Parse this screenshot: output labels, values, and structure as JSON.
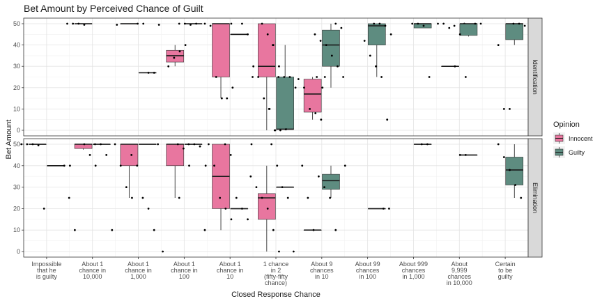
{
  "chart_data": {
    "type": "boxplot",
    "title": "Bet Amount by Perceived Chance of Guilt",
    "xlabel": "Closed Response Chance",
    "ylabel": "Bet Amount",
    "ylim": [
      0,
      50
    ],
    "yticks": [
      0,
      10,
      20,
      30,
      40,
      50
    ],
    "grid": true,
    "categories": [
      [
        "Impossible",
        "that he",
        "is guilty"
      ],
      [
        "About 1",
        "chance in",
        "10,000"
      ],
      [
        "About 1",
        "chance in",
        "1,000"
      ],
      [
        "About 1",
        "chance in",
        "100"
      ],
      [
        "About 1",
        "chance in",
        "10"
      ],
      [
        "1 chance",
        "in 2",
        "(fifty-fifty",
        "chance)"
      ],
      [
        "About 9",
        "chances",
        "in 10"
      ],
      [
        "About 99",
        "chances",
        "in 100"
      ],
      [
        "About 999",
        "chances",
        "in 1,000"
      ],
      [
        "About",
        "9,999",
        "chances",
        "in 10,000"
      ],
      [
        "Certain",
        "to be",
        "guilty"
      ]
    ],
    "legend": {
      "title": "Opinion",
      "position": "right",
      "entries": [
        {
          "name": "Innocent",
          "color": "#e8769f"
        },
        {
          "name": "Guilty",
          "color": "#5e8c80"
        }
      ]
    },
    "panels": [
      {
        "label": "Identification",
        "boxes": [
          {
            "cat": 1,
            "group": "Innocent",
            "min": 49.8,
            "q1": 49.8,
            "median": 50,
            "q3": 50,
            "max": 50,
            "points": [
              50,
              50,
              50,
              49.5
            ]
          },
          {
            "cat": 2,
            "group": "Innocent",
            "min": 49.8,
            "q1": 49.8,
            "median": 50,
            "q3": 50,
            "max": 50,
            "points": [
              50,
              50,
              49.5
            ]
          },
          {
            "cat": 2,
            "group": "Guilty",
            "min": 27,
            "q1": 27,
            "median": 27,
            "q3": 27,
            "max": 27,
            "points": [
              27,
              27
            ]
          },
          {
            "cat": 3,
            "group": "Innocent",
            "min": 30,
            "q1": 32,
            "median": 35,
            "q3": 37.5,
            "max": 40,
            "points": [
              30,
              34,
              37,
              40,
              49.5
            ]
          },
          {
            "cat": 3,
            "group": "Guilty",
            "min": 49.8,
            "q1": 49.8,
            "median": 50,
            "q3": 50,
            "max": 50,
            "points": [
              50,
              50,
              49.5,
              50
            ]
          },
          {
            "cat": 4,
            "group": "Innocent",
            "min": 15,
            "q1": 25,
            "median": 50,
            "q3": 50,
            "max": 50,
            "points": [
              50,
              50,
              49,
              25,
              15
            ]
          },
          {
            "cat": 4,
            "group": "Guilty",
            "min": 45,
            "q1": 45,
            "median": 45,
            "q3": 45,
            "max": 45,
            "points": [
              50,
              45,
              30,
              15,
              20
            ]
          },
          {
            "cat": 5,
            "group": "Innocent",
            "min": 0,
            "q1": 25,
            "median": 30,
            "q3": 50,
            "max": 50,
            "points": [
              50,
              45,
              40,
              30,
              25,
              25,
              15,
              10,
              0
            ]
          },
          {
            "cat": 5,
            "group": "Guilty",
            "min": 0,
            "q1": 0.5,
            "median": 0.5,
            "q3": 25,
            "max": 40,
            "points": [
              40,
              25,
              25,
              25,
              20,
              10,
              0,
              0,
              0.5
            ]
          },
          {
            "cat": 6,
            "group": "Innocent",
            "min": 5,
            "q1": 8.5,
            "median": 17,
            "q3": 24,
            "max": 25,
            "points": [
              25,
              24,
              20,
              10,
              8,
              5
            ]
          },
          {
            "cat": 6,
            "group": "Guilty",
            "min": 20,
            "q1": 30,
            "median": 40,
            "q3": 47,
            "max": 50,
            "points": [
              50,
              48,
              45,
              42,
              40,
              35,
              30,
              25,
              25,
              20
            ]
          },
          {
            "cat": 7,
            "group": "Guilty",
            "min": 25,
            "q1": 40,
            "median": 49,
            "q3": 50,
            "max": 50,
            "points": [
              50,
              50,
              49,
              45,
              42,
              35,
              30,
              25,
              5
            ]
          },
          {
            "cat": 8,
            "group": "Guilty",
            "min": 48,
            "q1": 48,
            "median": 50,
            "q3": 50,
            "max": 50,
            "points": [
              50,
              50,
              49,
              25
            ]
          },
          {
            "cat": 9,
            "group": "Innocent",
            "min": 30,
            "q1": 30,
            "median": 30,
            "q3": 30,
            "max": 30,
            "points": [
              50,
              50,
              50,
              48,
              30
            ]
          },
          {
            "cat": 9,
            "group": "Guilty",
            "min": 44,
            "q1": 44.5,
            "median": 50,
            "q3": 50,
            "max": 50,
            "points": [
              50,
              50,
              49,
              45,
              25
            ]
          },
          {
            "cat": 10,
            "group": "Guilty",
            "min": 40,
            "q1": 42.5,
            "median": 50,
            "q3": 50,
            "max": 50,
            "points": [
              50,
              50,
              49,
              40,
              10,
              10
            ]
          }
        ]
      },
      {
        "label": "Elimination",
        "boxes": [
          {
            "cat": 0,
            "group": "Innocent",
            "min": 50,
            "q1": 50,
            "median": 50,
            "q3": 50,
            "max": 50,
            "points": [
              50,
              50,
              50,
              49.5,
              20
            ]
          },
          {
            "cat": 0,
            "group": "Guilty",
            "min": 40,
            "q1": 40,
            "median": 40,
            "q3": 40,
            "max": 40,
            "points": [
              40,
              40
            ]
          },
          {
            "cat": 1,
            "group": "Innocent",
            "min": 47.5,
            "q1": 48,
            "median": 50,
            "q3": 50,
            "max": 50,
            "points": [
              50,
              45,
              40,
              25,
              10
            ]
          },
          {
            "cat": 1,
            "group": "Guilty",
            "min": 50,
            "q1": 50,
            "median": 50,
            "q3": 50,
            "max": 50,
            "points": [
              50,
              50,
              45,
              10
            ]
          },
          {
            "cat": 2,
            "group": "Innocent",
            "min": 25,
            "q1": 40,
            "median": 50,
            "q3": 50,
            "max": 50,
            "points": [
              50,
              40,
              30,
              25
            ]
          },
          {
            "cat": 2,
            "group": "Guilty",
            "min": 50,
            "q1": 50,
            "median": 50,
            "q3": 50,
            "max": 50,
            "points": [
              50,
              45,
              40,
              25,
              20,
              10
            ]
          },
          {
            "cat": 3,
            "group": "Innocent",
            "min": 25,
            "q1": 40,
            "median": 50,
            "q3": 50,
            "max": 50,
            "points": [
              50,
              48,
              40,
              0
            ]
          },
          {
            "cat": 3,
            "group": "Guilty",
            "min": 50,
            "q1": 50,
            "median": 50,
            "q3": 50,
            "max": 50,
            "points": [
              50,
              50,
              49,
              40,
              25
            ]
          },
          {
            "cat": 4,
            "group": "Innocent",
            "min": 10,
            "q1": 20,
            "median": 35,
            "q3": 50,
            "max": 50,
            "points": [
              50,
              40,
              25,
              20,
              15,
              10
            ]
          },
          {
            "cat": 4,
            "group": "Guilty",
            "min": 20,
            "q1": 20,
            "median": 20,
            "q3": 20,
            "max": 20,
            "points": [
              50,
              50,
              45,
              25,
              20,
              15
            ]
          },
          {
            "cat": 5,
            "group": "Innocent",
            "min": 0,
            "q1": 15,
            "median": 25,
            "q3": 27,
            "max": 40,
            "points": [
              50,
              40,
              35,
              30,
              25,
              20,
              10,
              0
            ]
          },
          {
            "cat": 5,
            "group": "Guilty",
            "min": 30,
            "q1": 30,
            "median": 30,
            "q3": 30,
            "max": 30,
            "points": [
              30,
              25,
              0
            ]
          },
          {
            "cat": 6,
            "group": "Innocent",
            "min": 10,
            "q1": 10,
            "median": 10,
            "q3": 10,
            "max": 10,
            "points": [
              40,
              25,
              10
            ]
          },
          {
            "cat": 6,
            "group": "Guilty",
            "min": 25,
            "q1": 29,
            "median": 33,
            "q3": 36,
            "max": 40,
            "points": [
              40,
              35,
              30,
              25,
              10
            ]
          },
          {
            "cat": 7,
            "group": "Guilty",
            "min": 20,
            "q1": 20,
            "median": 20,
            "q3": 20,
            "max": 20,
            "points": [
              20,
              20
            ]
          },
          {
            "cat": 8,
            "group": "Guilty",
            "min": 50,
            "q1": 50,
            "median": 50,
            "q3": 50,
            "max": 50,
            "points": [
              50,
              50
            ]
          },
          {
            "cat": 9,
            "group": "Guilty",
            "min": 45,
            "q1": 45,
            "median": 45,
            "q3": 45,
            "max": 45,
            "points": [
              45,
              45
            ]
          },
          {
            "cat": 10,
            "group": "Guilty",
            "min": 25,
            "q1": 31,
            "median": 38,
            "q3": 44,
            "max": 50,
            "points": [
              50,
              44,
              38,
              31,
              25
            ]
          }
        ]
      }
    ]
  }
}
